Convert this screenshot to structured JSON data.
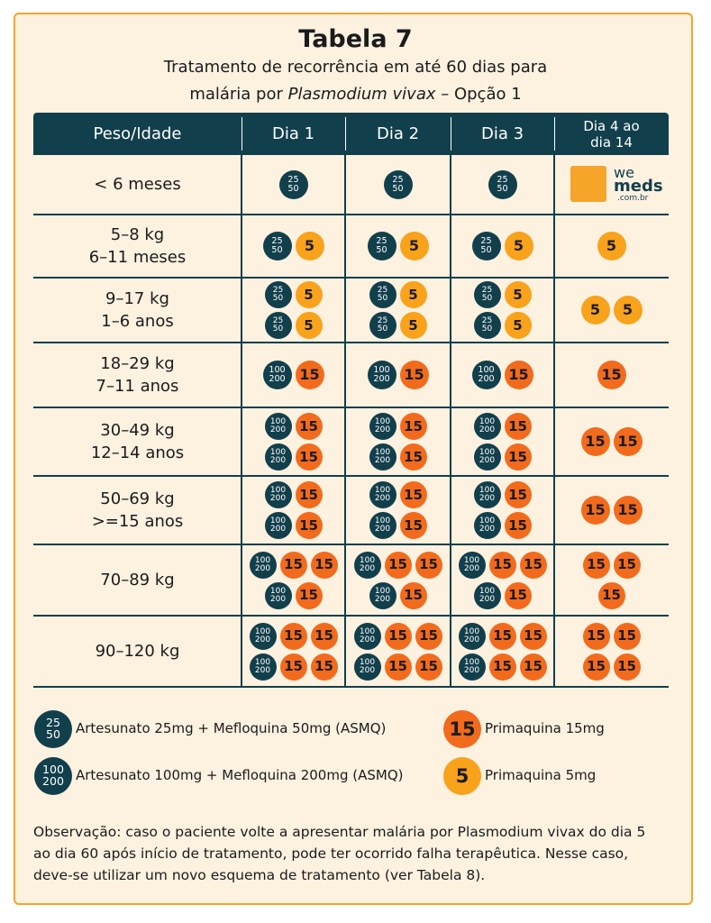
{
  "header": {
    "title": "Tabela 7",
    "subtitle_line1": "Tratamento de recorrência em até 60 dias para",
    "subtitle_line2": {
      "before": "malária por ",
      "italic": "Plasmodium vivax",
      "after": " – Opção 1"
    }
  },
  "table": {
    "columns": [
      [
        "Peso/Idade"
      ],
      [
        "Dia 1"
      ],
      [
        "Dia 2"
      ],
      [
        "Dia 3"
      ],
      [
        "Dia 4 ao",
        "dia 14"
      ]
    ],
    "rows": [
      {
        "label": [
          "< 6 meses"
        ],
        "cells": [
          [
            [
              [
                "25",
                "50"
              ]
            ]
          ],
          [
            [
              [
                "25",
                "50"
              ]
            ]
          ],
          [
            [
              [
                "25",
                "50"
              ]
            ]
          ],
          []
        ]
      },
      {
        "label": [
          "5–8 kg",
          "6–11 meses"
        ],
        "cells": [
          [
            [
              [
                "25",
                "50"
              ],
              "5"
            ]
          ],
          [
            [
              [
                "25",
                "50"
              ],
              "5"
            ]
          ],
          [
            [
              [
                "25",
                "50"
              ],
              "5"
            ]
          ],
          [
            [
              "5"
            ]
          ]
        ]
      },
      {
        "label": [
          "9–17 kg",
          "1–6 anos"
        ],
        "cells": [
          [
            [
              [
                "25",
                "50"
              ],
              "5"
            ],
            [
              [
                "25",
                "50"
              ],
              "5"
            ]
          ],
          [
            [
              [
                "25",
                "50"
              ],
              "5"
            ],
            [
              [
                "25",
                "50"
              ],
              "5"
            ]
          ],
          [
            [
              [
                "25",
                "50"
              ],
              "5"
            ],
            [
              [
                "25",
                "50"
              ],
              "5"
            ]
          ],
          [
            [
              "5",
              "5"
            ]
          ]
        ]
      },
      {
        "label": [
          "18–29 kg",
          "7–11 anos"
        ],
        "cells": [
          [
            [
              [
                "100",
                "200"
              ],
              "15"
            ]
          ],
          [
            [
              [
                "100",
                "200"
              ],
              "15"
            ]
          ],
          [
            [
              [
                "100",
                "200"
              ],
              "15"
            ]
          ],
          [
            [
              "15"
            ]
          ]
        ]
      },
      {
        "label": [
          "30–49 kg",
          "12–14 anos"
        ],
        "cells": [
          [
            [
              [
                "100",
                "200"
              ],
              "15"
            ],
            [
              [
                "100",
                "200"
              ],
              "15"
            ]
          ],
          [
            [
              [
                "100",
                "200"
              ],
              "15"
            ],
            [
              [
                "100",
                "200"
              ],
              "15"
            ]
          ],
          [
            [
              [
                "100",
                "200"
              ],
              "15"
            ],
            [
              [
                "100",
                "200"
              ],
              "15"
            ]
          ],
          [
            [
              "15",
              "15"
            ]
          ]
        ]
      },
      {
        "label": [
          "50–69 kg",
          ">=15 anos"
        ],
        "cells": [
          [
            [
              [
                "100",
                "200"
              ],
              "15"
            ],
            [
              [
                "100",
                "200"
              ],
              "15"
            ]
          ],
          [
            [
              [
                "100",
                "200"
              ],
              "15"
            ],
            [
              [
                "100",
                "200"
              ],
              "15"
            ]
          ],
          [
            [
              [
                "100",
                "200"
              ],
              "15"
            ],
            [
              [
                "100",
                "200"
              ],
              "15"
            ]
          ],
          [
            [
              "15",
              "15"
            ]
          ]
        ]
      },
      {
        "label": [
          "70–89 kg"
        ],
        "cells": [
          [
            [
              [
                "100",
                "200"
              ],
              "15",
              "15"
            ],
            [
              [
                "100",
                "200"
              ],
              "15"
            ]
          ],
          [
            [
              [
                "100",
                "200"
              ],
              "15",
              "15"
            ],
            [
              [
                "100",
                "200"
              ],
              "15"
            ]
          ],
          [
            [
              [
                "100",
                "200"
              ],
              "15",
              "15"
            ],
            [
              [
                "100",
                "200"
              ],
              "15"
            ]
          ],
          [
            [
              "15",
              "15"
            ],
            [
              "15"
            ]
          ]
        ]
      },
      {
        "label": [
          "90–120 kg"
        ],
        "cells": [
          [
            [
              [
                "100",
                "200"
              ],
              "15",
              "15"
            ],
            [
              [
                "100",
                "200"
              ],
              "15",
              "15"
            ]
          ],
          [
            [
              [
                "100",
                "200"
              ],
              "15",
              "15"
            ],
            [
              [
                "100",
                "200"
              ],
              "15",
              "15"
            ]
          ],
          [
            [
              [
                "100",
                "200"
              ],
              "15",
              "15"
            ],
            [
              [
                "100",
                "200"
              ],
              "15",
              "15"
            ]
          ],
          [
            [
              "15",
              "15"
            ],
            [
              "15",
              "15"
            ]
          ]
        ]
      }
    ]
  },
  "logo": {
    "we": "we",
    "meds": "meds",
    "domain": ".com.br"
  },
  "legend": [
    {
      "pill": [
        "25",
        "50"
      ],
      "color": "#123f4c",
      "text": "Artesunato 25mg + Mefloquina 50mg (ASMQ)"
    },
    {
      "pill": "15",
      "color": "#f26b1d",
      "text": "Primaquina 15mg"
    },
    {
      "pill": [
        "100",
        "200"
      ],
      "color": "#123f4c",
      "text": "Artesunato 100mg + Mefloquina 200mg (ASMQ)"
    },
    {
      "pill": "5",
      "color": "#f9a21b",
      "text": "Primaquina 5mg"
    }
  ],
  "note": [
    "Observação: caso o paciente volte a apresentar malária por Plasmodium vivax do dia 5",
    "ao dia 60 após início de tratamento, pode ter ocorrido falha terapêutica. Nesse caso,",
    "deve-se utilizar um novo esquema de tratamento (ver Tabela 8)."
  ]
}
